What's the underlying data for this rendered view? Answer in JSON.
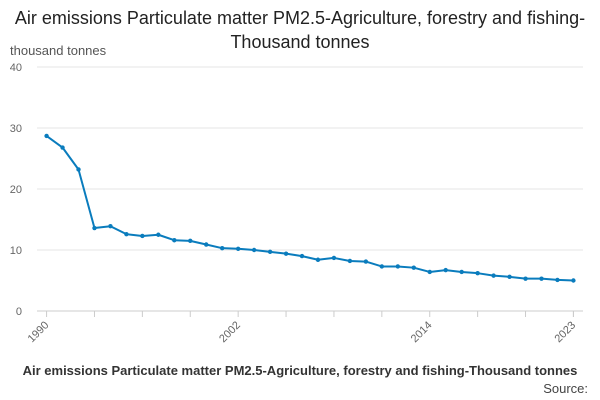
{
  "chart_data": {
    "type": "line",
    "title": "Air emissions Particulate matter PM2.5-Agriculture, forestry and fishing-Thousand tonnes",
    "ylabel": "thousand tonnes",
    "xlabel": "Air emissions Particulate matter PM2.5-Agriculture, forestry and fishing-Thousand tonnes",
    "source_label": "Source:",
    "ylim": [
      0,
      40
    ],
    "yticks": [
      0,
      10,
      20,
      30,
      40
    ],
    "xlim": [
      1990,
      2023
    ],
    "xtick_labels": [
      "1990",
      "2002",
      "2014",
      "2023"
    ],
    "grid": true,
    "colors": {
      "line": "#0a7cbd",
      "grid": "#e6e6e6",
      "axis": "#cccccc"
    },
    "series": [
      {
        "name": "PM2.5 Agriculture, forestry and fishing",
        "x": [
          1990,
          1991,
          1992,
          1993,
          1994,
          1995,
          1996,
          1997,
          1998,
          1999,
          2000,
          2001,
          2002,
          2003,
          2004,
          2005,
          2006,
          2007,
          2008,
          2009,
          2010,
          2011,
          2012,
          2013,
          2014,
          2015,
          2016,
          2017,
          2018,
          2019,
          2020,
          2021,
          2022,
          2023
        ],
        "values": [
          28.7,
          26.8,
          23.2,
          13.6,
          13.9,
          12.6,
          12.3,
          12.5,
          11.6,
          11.5,
          10.9,
          10.3,
          10.2,
          10.0,
          9.7,
          9.4,
          9.0,
          8.4,
          8.7,
          8.2,
          8.1,
          7.3,
          7.3,
          7.1,
          6.4,
          6.7,
          6.4,
          6.2,
          5.8,
          5.6,
          5.3,
          5.3,
          5.1,
          5.0
        ]
      }
    ]
  }
}
